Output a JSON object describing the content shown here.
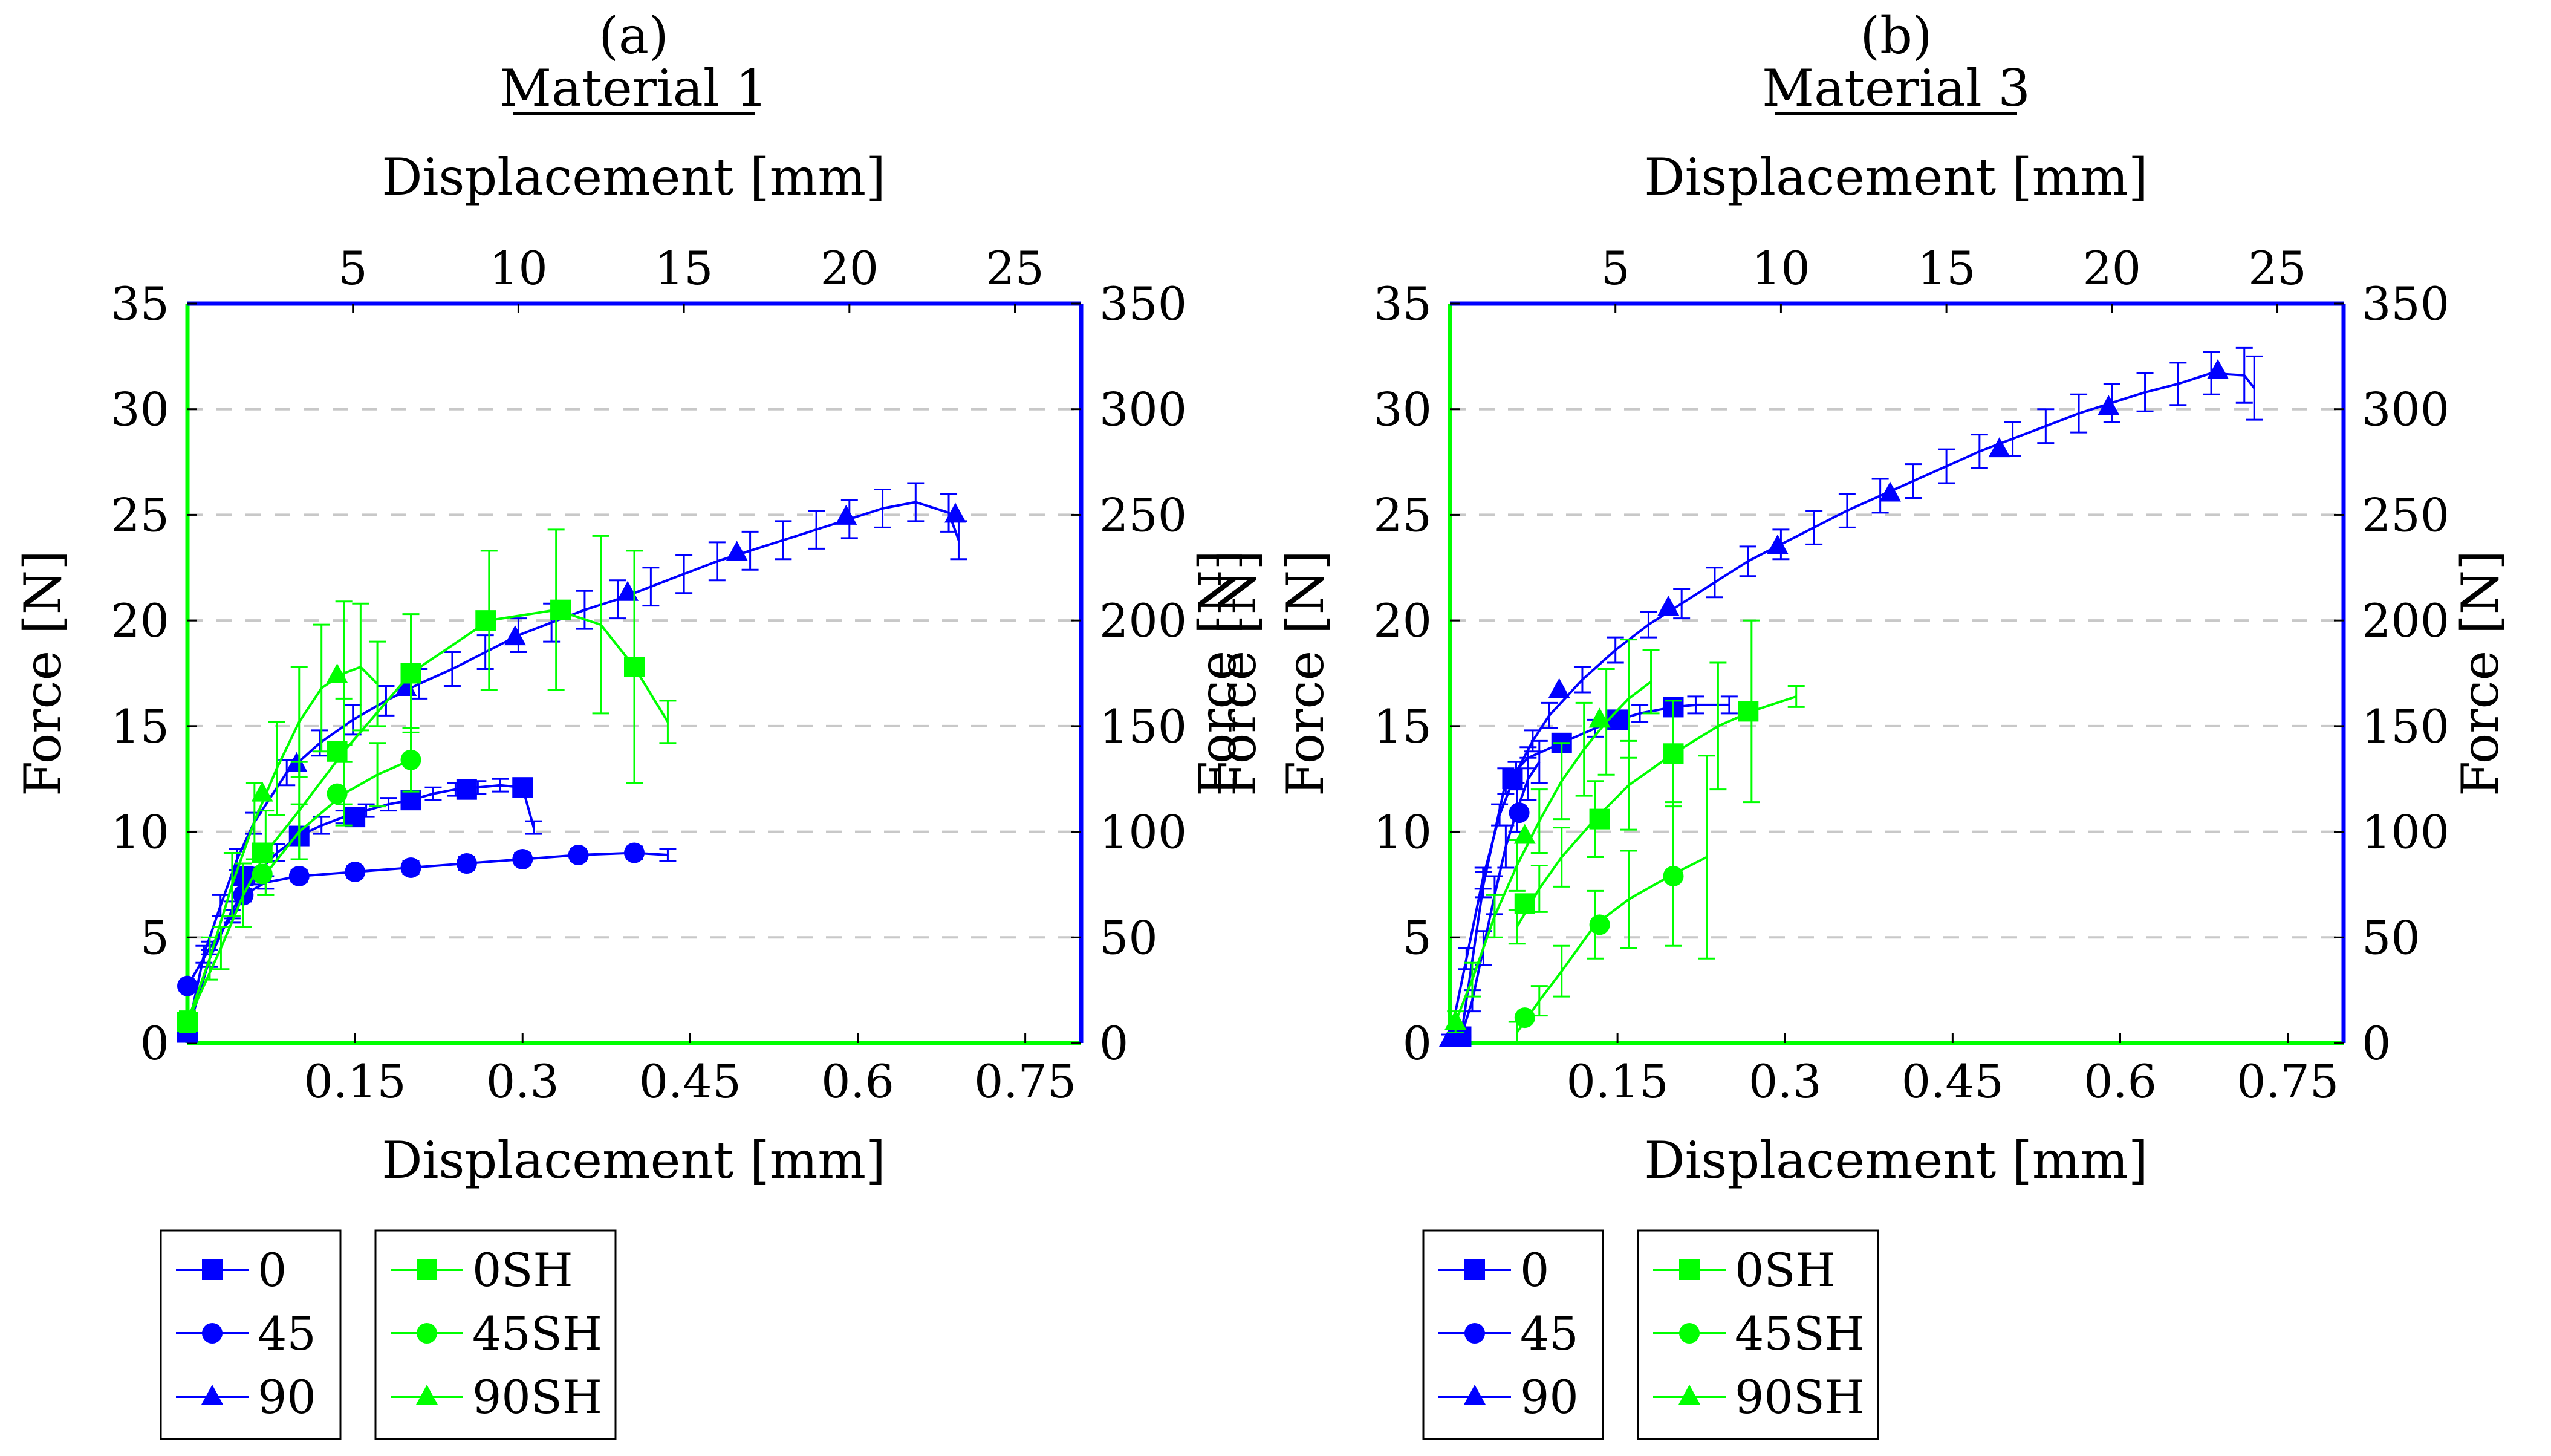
{
  "colors": {
    "blue": "#0000ff",
    "green": "#00ff00",
    "grid": "#c8c8c8"
  },
  "chart_data": [
    {
      "type": "line",
      "label": "(a)",
      "title": "Material 1",
      "xlabel": "Displacement [mm]",
      "x2label": "Displacement [mm]",
      "ylabel": "Force [N]",
      "y2label": "Force [N]",
      "xlim": [
        0,
        0.8
      ],
      "x2lim": [
        0,
        27
      ],
      "ylim": [
        0,
        35
      ],
      "y2lim": [
        0,
        350
      ],
      "xticks": [
        0.15,
        0.3,
        0.45,
        0.6,
        0.75
      ],
      "xtick_labels": [
        "0.15",
        "0.3",
        "0.45",
        "0.6",
        "0.75"
      ],
      "x2ticks": [
        5,
        10,
        15,
        20,
        25
      ],
      "x2tick_labels": [
        "5",
        "10",
        "15",
        "20",
        "25"
      ],
      "yticks": [
        0,
        5,
        10,
        15,
        20,
        25,
        30,
        35
      ],
      "ytick_labels": [
        "0",
        "5",
        "10",
        "15",
        "20",
        "25",
        "30",
        "35"
      ],
      "y2ticks": [
        0,
        50,
        100,
        150,
        200,
        250,
        300,
        350
      ],
      "y2tick_labels": [
        "0",
        "50",
        "100",
        "150",
        "200",
        "250",
        "300",
        "350"
      ],
      "grid": "horizontal dashed",
      "series": [
        {
          "name": "0",
          "color": "blue",
          "marker": "square",
          "axis": "bottom-left",
          "x": [
            0,
            0.02,
            0.04,
            0.06,
            0.08,
            0.1,
            0.12,
            0.14,
            0.16,
            0.18,
            0.2,
            0.22,
            0.24,
            0.26,
            0.28,
            0.3,
            0.31
          ],
          "y": [
            0.5,
            4,
            6.3,
            7.9,
            9,
            9.8,
            10.3,
            10.7,
            11.0,
            11.3,
            11.5,
            11.8,
            12.0,
            12.1,
            12.2,
            12.1,
            10.2
          ],
          "err": [
            0.3,
            0.4,
            0.4,
            0.4,
            0.4,
            0.4,
            0.4,
            0.3,
            0.3,
            0.3,
            0.3,
            0.3,
            0.3,
            0.3,
            0.3,
            0.3,
            0.3
          ],
          "markers_x": [
            0,
            0.05,
            0.1,
            0.15,
            0.2,
            0.25,
            0.3
          ],
          "markers_y": [
            0.5,
            7.9,
            9.8,
            10.7,
            11.5,
            12.0,
            12.1
          ]
        },
        {
          "name": "45",
          "color": "blue",
          "marker": "circle",
          "axis": "bottom-left",
          "x": [
            0,
            0.02,
            0.04,
            0.05,
            0.07,
            0.1,
            0.15,
            0.2,
            0.25,
            0.3,
            0.35,
            0.4,
            0.43
          ],
          "y": [
            2.7,
            4.5,
            6.0,
            7.0,
            7.6,
            7.9,
            8.1,
            8.3,
            8.5,
            8.7,
            8.9,
            9.0,
            8.9
          ],
          "err": [
            0.2,
            0.3,
            0.3,
            0.3,
            0.3,
            0.3,
            0.3,
            0.3,
            0.3,
            0.3,
            0.3,
            0.3,
            0.3
          ],
          "markers_x": [
            0,
            0.05,
            0.1,
            0.15,
            0.2,
            0.25,
            0.3,
            0.35,
            0.4
          ],
          "markers_y": [
            2.7,
            7.0,
            7.9,
            8.1,
            8.3,
            8.5,
            8.7,
            8.9,
            9.0
          ]
        },
        {
          "name": "90",
          "color": "blue",
          "marker": "triangle",
          "axis": "top-right",
          "x": [
            0,
            0.5,
            1,
            1.5,
            2,
            3,
            4,
            5,
            6,
            7,
            8,
            9,
            10,
            11,
            12,
            13,
            14,
            15,
            16,
            17,
            18,
            19,
            20,
            21,
            22,
            23,
            23.3
          ],
          "y": [
            5,
            42,
            65,
            87,
            104,
            128,
            142,
            153,
            162,
            170,
            177,
            185,
            193,
            199,
            205,
            210,
            216,
            222,
            228,
            233,
            238,
            243,
            248,
            253,
            256,
            251,
            238
          ],
          "err": [
            4,
            4,
            5,
            5,
            5,
            6,
            6,
            7,
            7,
            7,
            8,
            8,
            8,
            9,
            9,
            9,
            9,
            9,
            9,
            9,
            9,
            9,
            9,
            9,
            9,
            9,
            9
          ],
          "markers_x": [
            0,
            3.3,
            6.6,
            9.9,
            13.3,
            16.6,
            19.9,
            23.2
          ],
          "markers_y": [
            5,
            132,
            168,
            192,
            213,
            232,
            249,
            250
          ]
        },
        {
          "name": "0SH",
          "color": "green",
          "marker": "square",
          "axis": "bottom-left",
          "x": [
            0,
            0.03,
            0.05,
            0.07,
            0.1,
            0.14,
            0.2,
            0.27,
            0.33,
            0.37,
            0.4,
            0.43
          ],
          "y": [
            1.0,
            4.5,
            7.0,
            9.0,
            11.0,
            13.8,
            17.5,
            20.0,
            20.5,
            19.8,
            17.8,
            15.2
          ],
          "err": [
            0.3,
            1.0,
            1.5,
            2.0,
            2.3,
            2.5,
            2.8,
            3.3,
            3.8,
            4.2,
            5.5,
            1.0
          ],
          "markers_x": [
            0,
            0.067,
            0.134,
            0.2,
            0.267,
            0.334,
            0.4
          ],
          "markers_y": [
            1.0,
            9.0,
            13.8,
            17.5,
            20.0,
            20.5,
            17.8
          ]
        },
        {
          "name": "45SH",
          "color": "green",
          "marker": "circle",
          "axis": "bottom-left",
          "x": [
            0.07,
            0.1,
            0.14,
            0.17,
            0.2
          ],
          "y": [
            8.0,
            10.0,
            11.8,
            12.7,
            13.4
          ],
          "err": [
            1.0,
            1.3,
            1.5,
            1.5,
            1.5
          ],
          "markers_x": [
            0.067,
            0.134,
            0.2
          ],
          "markers_y": [
            8.0,
            11.8,
            13.4
          ]
        },
        {
          "name": "90SH",
          "color": "green",
          "marker": "triangle",
          "axis": "bottom-left",
          "x": [
            0,
            0.02,
            0.04,
            0.06,
            0.08,
            0.1,
            0.12,
            0.14,
            0.155,
            0.17
          ],
          "y": [
            1.0,
            4.0,
            7.5,
            10.5,
            13.0,
            15.2,
            16.8,
            17.5,
            17.8,
            17.0
          ],
          "err": [
            0.5,
            1.0,
            1.5,
            1.8,
            2.2,
            2.6,
            3.0,
            3.4,
            3.0,
            2.0
          ],
          "markers_x": [
            0,
            0.067,
            0.134
          ],
          "markers_y": [
            1.0,
            11.8,
            17.4
          ]
        }
      ]
    },
    {
      "type": "line",
      "label": "(b)",
      "title": "Material 3",
      "xlabel": "Displacement [mm]",
      "x2label": "Displacement [mm]",
      "ylabel": "Force [N]",
      "y2label": "Force [N]",
      "xlim": [
        0,
        0.8
      ],
      "x2lim": [
        0,
        27
      ],
      "ylim": [
        0,
        35
      ],
      "y2lim": [
        0,
        350
      ],
      "xticks": [
        0.15,
        0.3,
        0.45,
        0.6,
        0.75
      ],
      "xtick_labels": [
        "0.15",
        "0.3",
        "0.45",
        "0.6",
        "0.75"
      ],
      "x2ticks": [
        5,
        10,
        15,
        20,
        25
      ],
      "x2tick_labels": [
        "5",
        "10",
        "15",
        "20",
        "25"
      ],
      "yticks": [
        0,
        5,
        10,
        15,
        20,
        25,
        30,
        35
      ],
      "ytick_labels": [
        "0",
        "5",
        "10",
        "15",
        "20",
        "25",
        "30",
        "35"
      ],
      "y2ticks": [
        0,
        50,
        100,
        150,
        200,
        250,
        300,
        350
      ],
      "y2tick_labels": [
        "0",
        "50",
        "100",
        "150",
        "200",
        "250",
        "300",
        "350"
      ],
      "grid": "horizontal dashed",
      "series": [
        {
          "name": "0",
          "color": "blue",
          "marker": "square",
          "axis": "bottom-left",
          "x": [
            0.01,
            0.03,
            0.05,
            0.07,
            0.1,
            0.13,
            0.15,
            0.17,
            0.2,
            0.22,
            0.25
          ],
          "y": [
            0.3,
            7.5,
            12.4,
            13.5,
            14.2,
            14.9,
            15.3,
            15.6,
            15.9,
            16.0,
            16.0
          ],
          "err": [
            0.3,
            0.6,
            0.6,
            0.5,
            0.4,
            0.4,
            0.4,
            0.4,
            0.4,
            0.4,
            0.4
          ],
          "markers_x": [
            0.01,
            0.056,
            0.1,
            0.15,
            0.2
          ],
          "markers_y": [
            0.3,
            12.5,
            14.2,
            15.3,
            15.9
          ]
        },
        {
          "name": "45",
          "color": "blue",
          "marker": "circle",
          "axis": "bottom-left",
          "x": [
            0.01,
            0.02,
            0.03,
            0.04,
            0.05,
            0.06,
            0.07,
            0.08
          ],
          "y": [
            0.3,
            2.0,
            4.5,
            7.0,
            9.3,
            11.0,
            12.5,
            13.3
          ],
          "err": [
            0.3,
            0.5,
            0.8,
            0.9,
            1.0,
            1.0,
            1.0,
            1.0
          ],
          "markers_x": [
            0.01,
            0.062
          ],
          "markers_y": [
            0.3,
            10.9
          ]
        },
        {
          "name": "90",
          "color": "blue",
          "marker": "triangle",
          "axis": "top-right",
          "x": [
            0,
            0.5,
            1,
            1.5,
            2,
            2.5,
            3,
            4,
            5,
            6,
            7,
            8,
            9,
            10,
            11,
            12,
            13,
            14,
            15,
            16,
            17,
            18,
            19,
            20,
            21,
            22,
            23,
            24,
            24.3
          ],
          "y": [
            2,
            40,
            78,
            108,
            128,
            143,
            155,
            172,
            186,
            198,
            208,
            218,
            228,
            236,
            244,
            252,
            259,
            266,
            273,
            280,
            286,
            292,
            298,
            303,
            308,
            312,
            317,
            316,
            310
          ],
          "err": [
            2,
            5,
            5,
            5,
            5,
            5,
            6,
            6,
            6,
            6,
            7,
            7,
            7,
            7,
            8,
            8,
            8,
            8,
            8,
            8,
            8,
            8,
            9,
            9,
            9,
            10,
            10,
            13,
            15
          ],
          "markers_x": [
            0,
            3.3,
            6.6,
            9.9,
            13.3,
            16.6,
            19.9,
            23.2
          ],
          "markers_y": [
            2,
            167,
            206,
            235,
            260,
            281,
            301,
            318
          ]
        },
        {
          "name": "0SH",
          "color": "green",
          "marker": "square",
          "axis": "bottom-left",
          "x": [
            0.06,
            0.08,
            0.1,
            0.13,
            0.16,
            0.2,
            0.24,
            0.27,
            0.31
          ],
          "y": [
            5.5,
            7.3,
            8.8,
            10.6,
            12.2,
            13.7,
            15.0,
            15.7,
            16.4
          ],
          "err": [
            0.8,
            1.1,
            1.4,
            1.8,
            2.1,
            2.5,
            3.0,
            4.3,
            0.5
          ],
          "markers_x": [
            0.067,
            0.134,
            0.2,
            0.267
          ],
          "markers_y": [
            6.6,
            10.6,
            13.7,
            15.7
          ]
        },
        {
          "name": "45SH",
          "color": "green",
          "marker": "circle",
          "axis": "bottom-left",
          "x": [
            0.06,
            0.08,
            0.1,
            0.13,
            0.16,
            0.2,
            0.23
          ],
          "y": [
            0.5,
            2.0,
            3.4,
            5.6,
            6.8,
            8.0,
            8.8
          ],
          "err": [
            0.5,
            0.7,
            1.2,
            1.6,
            2.3,
            3.4,
            4.8
          ],
          "markers_x": [
            0.067,
            0.134,
            0.2
          ],
          "markers_y": [
            1.2,
            5.6,
            7.9
          ]
        },
        {
          "name": "90SH",
          "color": "green",
          "marker": "triangle",
          "axis": "bottom-left",
          "x": [
            0.005,
            0.02,
            0.04,
            0.06,
            0.08,
            0.1,
            0.12,
            0.14,
            0.16,
            0.18
          ],
          "y": [
            1.0,
            3.0,
            6.0,
            8.4,
            10.5,
            12.4,
            13.9,
            15.2,
            16.3,
            17.1
          ],
          "err": [
            0.5,
            0.8,
            1.0,
            1.2,
            1.5,
            1.8,
            2.2,
            2.5,
            2.8,
            1.5
          ],
          "markers_x": [
            0.005,
            0.067,
            0.134
          ],
          "markers_y": [
            1.0,
            9.8,
            15.3
          ]
        }
      ]
    }
  ]
}
